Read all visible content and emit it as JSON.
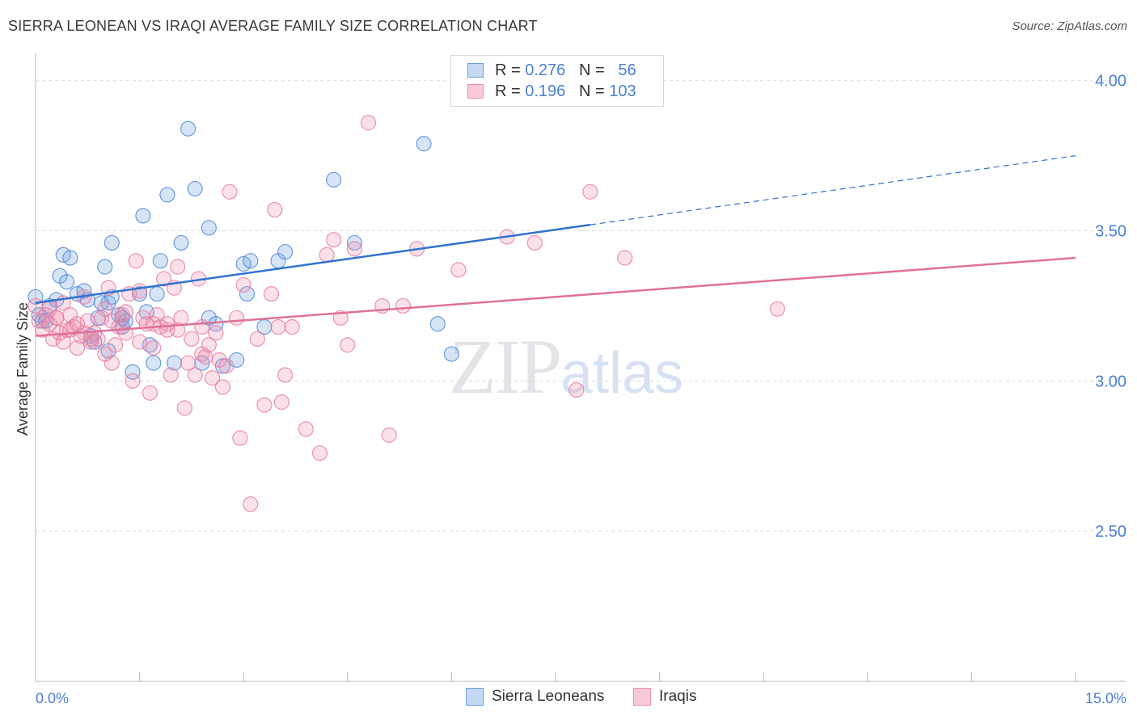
{
  "header": {
    "title": "SIERRA LEONEAN VS IRAQI AVERAGE FAMILY SIZE CORRELATION CHART",
    "source": "Source: ZipAtlas.com"
  },
  "watermark": {
    "zip": "ZIP",
    "atlas": "atlas"
  },
  "legend": {
    "rows": [
      {
        "r_label": "R =",
        "r_value": "0.276",
        "n_label": "N =",
        "n_value": "56",
        "color": "#6a9fe0"
      },
      {
        "r_label": "R =",
        "r_value": "0.196",
        "n_label": "N =",
        "n_value": "103",
        "color": "#ec8fae"
      }
    ]
  },
  "bottom_legend": {
    "items": [
      {
        "label": "Sierra Leoneans",
        "color": "#6a9fe0"
      },
      {
        "label": "Iraqis",
        "color": "#ec8fae"
      }
    ]
  },
  "chart_data": {
    "type": "scatter",
    "title": "SIERRA LEONEAN VS IRAQI AVERAGE FAMILY SIZE CORRELATION CHART",
    "xlabel": "",
    "ylabel": "Average Family Size",
    "xlim": [
      0,
      15
    ],
    "ylim": [
      2.0,
      4.08
    ],
    "x_tick_labels": [
      {
        "value": 0,
        "label": "0.0%"
      },
      {
        "value": 15,
        "label": "15.0%"
      }
    ],
    "x_minor_ticks": [
      0,
      1.5,
      3,
      4.5,
      6,
      7.5,
      9,
      10.5,
      12,
      13.5,
      15
    ],
    "y_ticks": [
      {
        "value": 2.5,
        "label": "2.50"
      },
      {
        "value": 3.0,
        "label": "3.00"
      },
      {
        "value": 3.5,
        "label": "3.50"
      },
      {
        "value": 4.0,
        "label": "4.00"
      }
    ],
    "grid": "horizontal dashed",
    "series": [
      {
        "name": "Sierra Leoneans",
        "color": "#6a9fe0",
        "stroke": "#4a86d8",
        "trend": {
          "x0": 0,
          "y0": 3.26,
          "x1": 8.0,
          "y1": 3.52,
          "dashed_to_x": 15,
          "dashed_to_y": 3.75,
          "color": "#2f72d0"
        },
        "points": [
          [
            0.0,
            3.28
          ],
          [
            0.05,
            3.22
          ],
          [
            0.1,
            3.2
          ],
          [
            0.2,
            3.25
          ],
          [
            0.3,
            3.27
          ],
          [
            0.35,
            3.35
          ],
          [
            0.4,
            3.42
          ],
          [
            0.45,
            3.33
          ],
          [
            0.5,
            3.41
          ],
          [
            0.6,
            3.29
          ],
          [
            0.7,
            3.3
          ],
          [
            0.75,
            3.27
          ],
          [
            0.8,
            3.15
          ],
          [
            0.85,
            3.13
          ],
          [
            0.9,
            3.21
          ],
          [
            1.0,
            3.38
          ],
          [
            1.05,
            3.26
          ],
          [
            1.1,
            3.46
          ],
          [
            1.2,
            3.22
          ],
          [
            1.25,
            3.18
          ],
          [
            1.3,
            3.2
          ],
          [
            1.4,
            3.03
          ],
          [
            1.5,
            3.29
          ],
          [
            1.55,
            3.55
          ],
          [
            1.6,
            3.23
          ],
          [
            1.65,
            3.12
          ],
          [
            1.7,
            3.06
          ],
          [
            1.75,
            3.29
          ],
          [
            1.8,
            3.4
          ],
          [
            1.9,
            3.62
          ],
          [
            2.0,
            3.06
          ],
          [
            2.1,
            3.46
          ],
          [
            2.2,
            3.84
          ],
          [
            2.3,
            3.64
          ],
          [
            2.4,
            3.06
          ],
          [
            2.5,
            3.21
          ],
          [
            2.5,
            3.51
          ],
          [
            2.6,
            3.19
          ],
          [
            2.7,
            3.05
          ],
          [
            2.9,
            3.07
          ],
          [
            3.0,
            3.39
          ],
          [
            3.05,
            3.29
          ],
          [
            3.1,
            3.4
          ],
          [
            3.3,
            3.18
          ],
          [
            3.5,
            3.4
          ],
          [
            3.6,
            3.43
          ],
          [
            4.3,
            3.67
          ],
          [
            4.6,
            3.46
          ],
          [
            5.6,
            3.79
          ],
          [
            5.8,
            3.19
          ],
          [
            6.0,
            3.09
          ],
          [
            0.15,
            3.2
          ],
          [
            1.05,
            3.1
          ],
          [
            0.95,
            3.26
          ],
          [
            1.1,
            3.28
          ],
          [
            1.25,
            3.21
          ]
        ]
      },
      {
        "name": "Iraqis",
        "color": "#ec8fae",
        "stroke": "#e77aa0",
        "trend": {
          "x0": 0,
          "y0": 3.15,
          "x1": 15,
          "y1": 3.41,
          "color": "#e0709a"
        },
        "points": [
          [
            0.0,
            3.25
          ],
          [
            0.05,
            3.2
          ],
          [
            0.1,
            3.17
          ],
          [
            0.15,
            3.22
          ],
          [
            0.2,
            3.19
          ],
          [
            0.25,
            3.14
          ],
          [
            0.3,
            3.21
          ],
          [
            0.35,
            3.16
          ],
          [
            0.4,
            3.13
          ],
          [
            0.45,
            3.17
          ],
          [
            0.5,
            3.22
          ],
          [
            0.55,
            3.18
          ],
          [
            0.6,
            3.11
          ],
          [
            0.65,
            3.15
          ],
          [
            0.7,
            3.28
          ],
          [
            0.75,
            3.2
          ],
          [
            0.8,
            3.13
          ],
          [
            0.85,
            3.16
          ],
          [
            0.9,
            3.14
          ],
          [
            0.95,
            3.21
          ],
          [
            1.0,
            3.24
          ],
          [
            1.05,
            3.31
          ],
          [
            1.1,
            3.06
          ],
          [
            1.15,
            3.12
          ],
          [
            1.2,
            3.18
          ],
          [
            1.25,
            3.22
          ],
          [
            1.3,
            3.16
          ],
          [
            1.35,
            3.29
          ],
          [
            1.4,
            3.0
          ],
          [
            1.45,
            3.4
          ],
          [
            1.5,
            3.13
          ],
          [
            1.55,
            3.21
          ],
          [
            1.6,
            3.19
          ],
          [
            1.65,
            2.96
          ],
          [
            1.7,
            3.11
          ],
          [
            1.75,
            3.22
          ],
          [
            1.8,
            3.18
          ],
          [
            1.85,
            3.34
          ],
          [
            1.9,
            3.19
          ],
          [
            1.95,
            3.02
          ],
          [
            2.0,
            3.31
          ],
          [
            2.05,
            3.17
          ],
          [
            2.1,
            3.21
          ],
          [
            2.15,
            2.91
          ],
          [
            2.2,
            3.06
          ],
          [
            2.25,
            3.14
          ],
          [
            2.3,
            3.02
          ],
          [
            2.35,
            3.34
          ],
          [
            2.4,
            3.18
          ],
          [
            2.45,
            3.08
          ],
          [
            2.5,
            3.12
          ],
          [
            2.55,
            3.01
          ],
          [
            2.6,
            3.16
          ],
          [
            2.65,
            3.07
          ],
          [
            2.7,
            2.98
          ],
          [
            2.75,
            3.05
          ],
          [
            2.8,
            3.63
          ],
          [
            2.9,
            3.21
          ],
          [
            2.95,
            2.81
          ],
          [
            3.0,
            3.32
          ],
          [
            3.1,
            2.59
          ],
          [
            3.2,
            3.14
          ],
          [
            3.3,
            2.92
          ],
          [
            3.4,
            3.29
          ],
          [
            3.45,
            3.57
          ],
          [
            3.5,
            3.18
          ],
          [
            3.55,
            2.93
          ],
          [
            3.6,
            3.02
          ],
          [
            3.7,
            3.18
          ],
          [
            3.9,
            2.84
          ],
          [
            4.1,
            2.76
          ],
          [
            4.2,
            3.42
          ],
          [
            4.3,
            3.47
          ],
          [
            4.4,
            3.21
          ],
          [
            4.5,
            3.12
          ],
          [
            4.6,
            3.44
          ],
          [
            4.8,
            3.86
          ],
          [
            5.0,
            3.25
          ],
          [
            5.1,
            2.82
          ],
          [
            5.3,
            3.25
          ],
          [
            5.5,
            3.44
          ],
          [
            6.1,
            3.37
          ],
          [
            6.8,
            3.48
          ],
          [
            7.2,
            3.46
          ],
          [
            7.8,
            2.97
          ],
          [
            8.0,
            3.63
          ],
          [
            8.5,
            3.41
          ],
          [
            10.7,
            3.24
          ],
          [
            0.4,
            3.26
          ],
          [
            0.6,
            3.19
          ],
          [
            0.8,
            3.14
          ],
          [
            1.0,
            3.09
          ],
          [
            1.3,
            3.23
          ],
          [
            1.7,
            3.19
          ],
          [
            2.05,
            3.38
          ],
          [
            2.4,
            3.09
          ],
          [
            0.2,
            3.24
          ],
          [
            0.3,
            3.21
          ],
          [
            0.5,
            3.17
          ],
          [
            0.7,
            3.16
          ],
          [
            1.1,
            3.2
          ],
          [
            1.5,
            3.3
          ],
          [
            1.9,
            3.17
          ]
        ]
      }
    ]
  }
}
